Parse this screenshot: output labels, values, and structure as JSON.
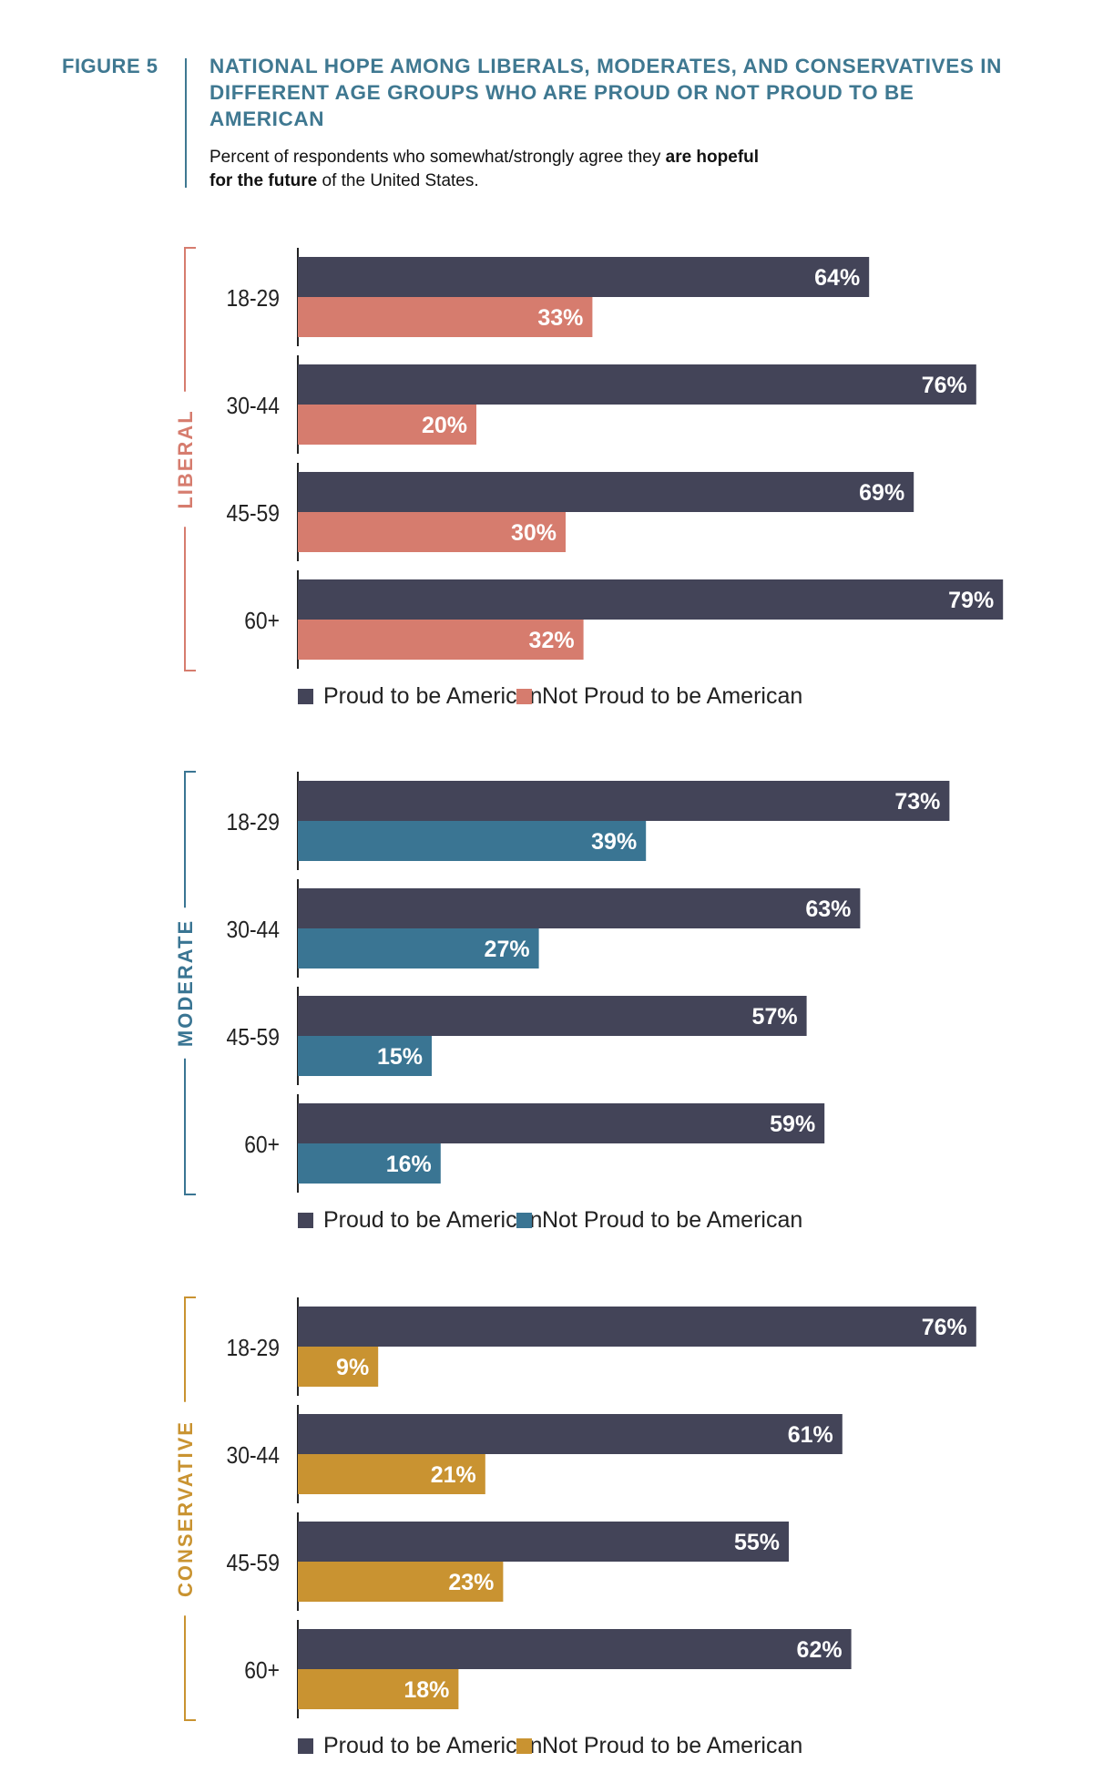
{
  "figure_label": "FIGURE 5",
  "title": "NATIONAL HOPE AMONG LIBERALS, MODERATES, AND CONSERVATIVES IN DIFFERENT AGE GROUPS WHO ARE PROUD OR NOT PROUD TO BE AMERICAN",
  "subtitle": {
    "part1": "Percent of respondents who somewhat/strongly agree they ",
    "bold1": "are hopeful",
    "bold2": "for the future",
    "part2": " of the United States."
  },
  "colors": {
    "proud": "#434458",
    "liberal": "#d67c6e",
    "moderate": "#3a7593",
    "conservative": "#c99331",
    "axis": "#222222"
  },
  "chart_data": [
    {
      "type": "bar",
      "orientation": "horizontal",
      "group": "LIBERAL",
      "categories": [
        "18-29",
        "30-44",
        "45-59",
        "60+"
      ],
      "series": [
        {
          "name": "Proud to be American",
          "values": [
            64,
            76,
            69,
            79
          ]
        },
        {
          "name": "Not Proud to be American",
          "values": [
            33,
            20,
            30,
            32
          ]
        }
      ],
      "value_labels_proud": [
        "64%",
        "76%",
        "69%",
        "79%"
      ],
      "value_labels_not": [
        "33%",
        "20%",
        "30%",
        "32%"
      ],
      "xlim": [
        0,
        100
      ],
      "legend": "bottom-left"
    },
    {
      "type": "bar",
      "orientation": "horizontal",
      "group": "MODERATE",
      "categories": [
        "18-29",
        "30-44",
        "45-59",
        "60+"
      ],
      "series": [
        {
          "name": "Proud to be American",
          "values": [
            73,
            63,
            57,
            59
          ]
        },
        {
          "name": "Not Proud to be American",
          "values": [
            39,
            27,
            15,
            16
          ]
        }
      ],
      "value_labels_proud": [
        "73%",
        "63%",
        "57%",
        "59%"
      ],
      "value_labels_not": [
        "39%",
        "27%",
        "15%",
        "16%"
      ],
      "xlim": [
        0,
        100
      ],
      "legend": "bottom-left"
    },
    {
      "type": "bar",
      "orientation": "horizontal",
      "group": "CONSERVATIVE",
      "categories": [
        "18-29",
        "30-44",
        "45-59",
        "60+"
      ],
      "series": [
        {
          "name": "Proud to be American",
          "values": [
            76,
            61,
            55,
            62
          ]
        },
        {
          "name": "Not Proud to be American",
          "values": [
            9,
            21,
            23,
            18
          ]
        }
      ],
      "value_labels_proud": [
        "76%",
        "61%",
        "55%",
        "62%"
      ],
      "value_labels_not": [
        "9%",
        "21%",
        "23%",
        "18%"
      ],
      "xlim": [
        0,
        100
      ],
      "legend": "bottom-left"
    }
  ]
}
